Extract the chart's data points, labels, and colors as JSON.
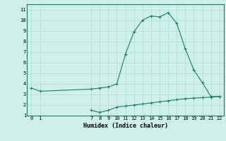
{
  "title": "",
  "xlabel": "Humidex (Indice chaleur)",
  "line1_x": [
    0,
    1,
    7,
    8,
    9,
    10,
    11,
    12,
    13,
    14,
    15,
    16,
    17,
    18,
    19,
    20,
    21,
    22
  ],
  "line1_y": [
    3.6,
    3.3,
    3.5,
    3.6,
    3.7,
    4.0,
    6.8,
    8.9,
    10.0,
    10.4,
    10.3,
    10.7,
    9.7,
    7.3,
    5.3,
    4.1,
    2.8,
    2.8
  ],
  "line2_x": [
    7,
    8,
    9,
    10,
    11,
    12,
    13,
    14,
    15,
    16,
    17,
    18,
    19,
    20,
    21,
    22
  ],
  "line2_y": [
    1.5,
    1.3,
    1.5,
    1.8,
    1.9,
    2.0,
    2.1,
    2.2,
    2.3,
    2.4,
    2.5,
    2.6,
    2.65,
    2.7,
    2.75,
    2.8
  ],
  "line_color": "#1a7a6e",
  "bg_color": "#cff0e8",
  "grid_color": "#a8ddd4",
  "ylim": [
    1,
    11.5
  ],
  "xlim": [
    -0.5,
    22.5
  ],
  "yticks": [
    1,
    2,
    3,
    4,
    5,
    6,
    7,
    8,
    9,
    10,
    11
  ],
  "xticks": [
    0,
    1,
    7,
    8,
    9,
    10,
    11,
    12,
    13,
    14,
    15,
    16,
    17,
    18,
    19,
    20,
    21,
    22
  ]
}
